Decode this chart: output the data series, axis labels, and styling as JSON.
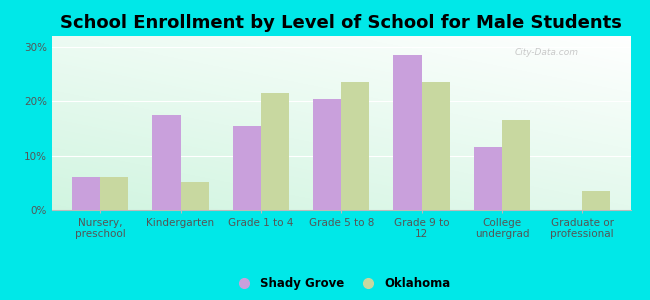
{
  "title": "School Enrollment by Level of School for Male Students",
  "categories": [
    "Nursery,\npreschool",
    "Kindergarten",
    "Grade 1 to 4",
    "Grade 5 to 8",
    "Grade 9 to\n12",
    "College\nundergrad",
    "Graduate or\nprofessional"
  ],
  "shady_grove": [
    6.0,
    17.5,
    15.5,
    20.5,
    28.5,
    11.5,
    0.0
  ],
  "oklahoma": [
    6.0,
    5.2,
    21.5,
    23.5,
    23.5,
    16.5,
    3.5
  ],
  "shady_grove_color": "#c9a0dc",
  "oklahoma_color": "#c8d8a0",
  "background_color": "#00e8e8",
  "ylim": [
    0,
    32
  ],
  "yticks": [
    0,
    10,
    20,
    30
  ],
  "ytick_labels": [
    "0%",
    "10%",
    "20%",
    "30%"
  ],
  "bar_width": 0.35,
  "title_fontsize": 13,
  "axis_fontsize": 7.5,
  "legend_fontsize": 8.5
}
